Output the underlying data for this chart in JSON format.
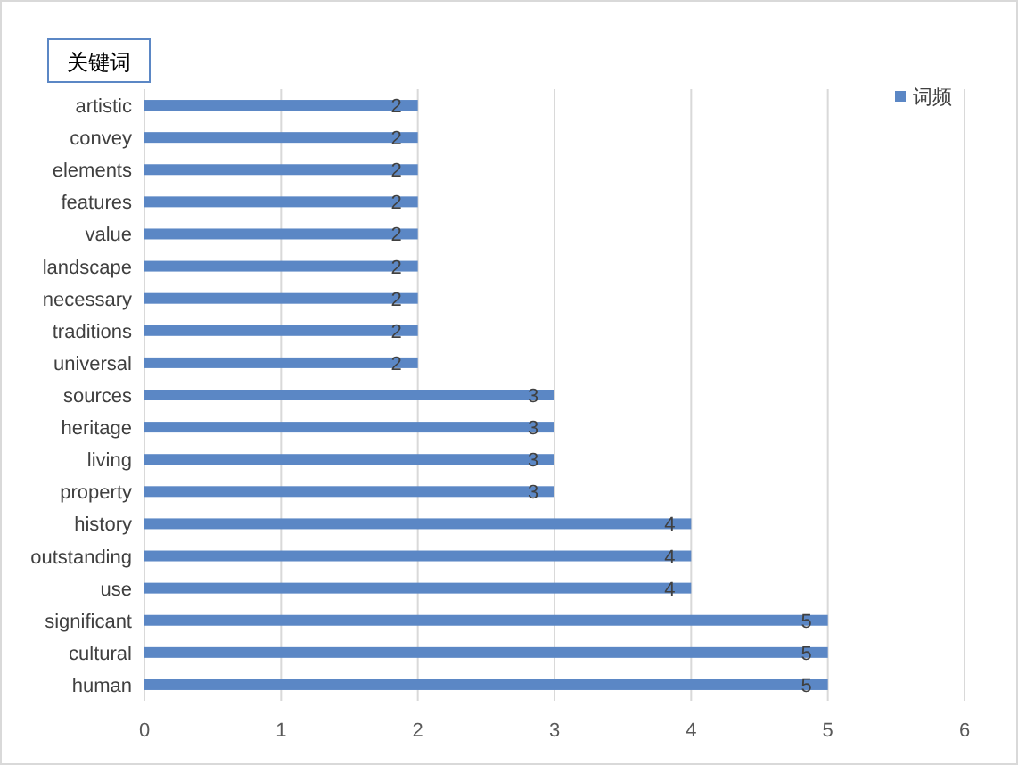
{
  "chart_data": {
    "type": "bar",
    "orientation": "horizontal",
    "title": "关键词",
    "categories": [
      "artistic",
      "convey",
      "elements",
      "features",
      "value",
      "landscape",
      "necessary",
      "traditions",
      "universal",
      "sources",
      "heritage",
      "living",
      "property",
      "history",
      "outstanding",
      "use",
      "significant",
      "cultural",
      "human"
    ],
    "series": [
      {
        "name": "词频",
        "color": "#5b87c5",
        "values": [
          2,
          2,
          2,
          2,
          2,
          2,
          2,
          2,
          2,
          3,
          3,
          3,
          3,
          4,
          4,
          4,
          5,
          5,
          5
        ]
      }
    ],
    "xlim": [
      0,
      6
    ],
    "xticks": [
      0,
      1,
      2,
      3,
      4,
      5,
      6
    ],
    "grid": "x",
    "legend": "top right",
    "data_labels": true
  }
}
